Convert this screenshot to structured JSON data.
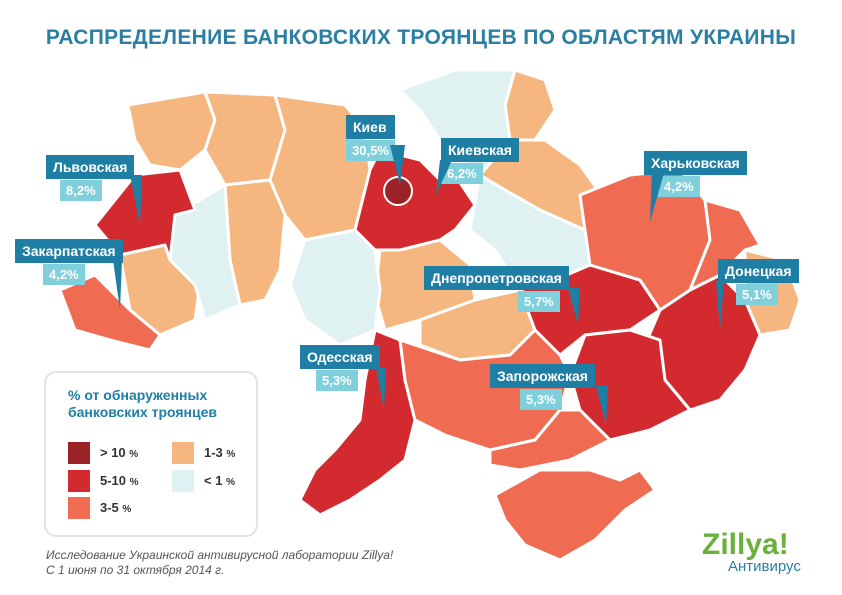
{
  "title": "РАСПРЕДЕЛЕНИЕ БАНКОВСКИХ ТРОЯНЦЕВ ПО ОБЛАСТЯМ УКРАИНЫ",
  "colors": {
    "gt10": "#9b2226",
    "r5_10": "#d32a2f",
    "r3_5": "#ef6b52",
    "r1_3": "#f6b67f",
    "lt1": "#dff1f1",
    "callout_name_bg": "#1f7ea3",
    "callout_value_bg": "#7fd0dc"
  },
  "callouts": [
    {
      "name": "Киев",
      "value": "30,5%"
    },
    {
      "name": "Киевская",
      "value": "6,2%"
    },
    {
      "name": "Львовская",
      "value": "8,2%"
    },
    {
      "name": "Харьковская",
      "value": "4,2%"
    },
    {
      "name": "Закарпатская",
      "value": "4,2%"
    },
    {
      "name": "Донецкая",
      "value": "5,1%"
    },
    {
      "name": "Днепропетровская",
      "value": "5,7%"
    },
    {
      "name": "Одесская",
      "value": "5,3%"
    },
    {
      "name": "Запорожская",
      "value": "5,3%"
    }
  ],
  "legend": {
    "title_line1": "% от обнаруженных",
    "title_line2": "банковских троянцев",
    "items": [
      {
        "label": "> 10",
        "unit": "%"
      },
      {
        "label": "5-10",
        "unit": "%"
      },
      {
        "label": "3-5",
        "unit": "%"
      },
      {
        "label": "1-3",
        "unit": "%"
      },
      {
        "label": "< 1",
        "unit": "%"
      }
    ]
  },
  "footer": {
    "line1": "Исследование Украинской антивирусной лаборатории Zillya!",
    "line2": "С 1 июня по 31 октября 2014 г."
  },
  "logo": {
    "brand_a": "Zill",
    "brand_b": "ya!",
    "sub": "Антивирус"
  }
}
